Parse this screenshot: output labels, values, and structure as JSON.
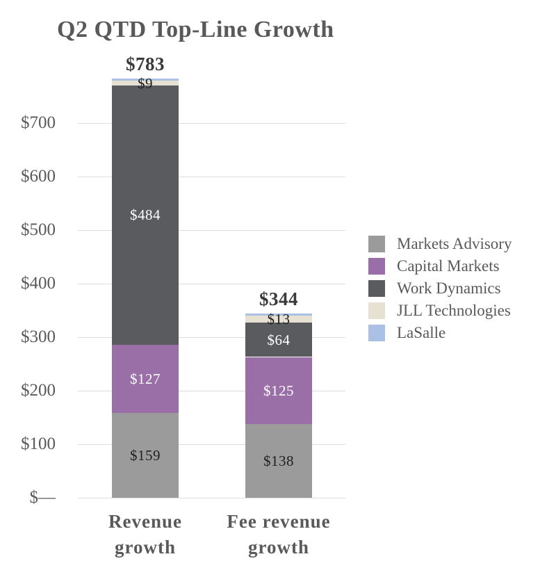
{
  "chart_data": {
    "type": "bar",
    "stacked": true,
    "title": "Q2 QTD Top-Line Growth",
    "categories": [
      "Revenue\ngrowth",
      "Fee revenue\ngrowth"
    ],
    "series": [
      {
        "name": "Markets Advisory",
        "color": "#9B9B9B",
        "values": [
          159,
          138
        ],
        "labels": [
          "$159",
          "$138"
        ],
        "label_style": "dark"
      },
      {
        "name": "Capital Markets",
        "color": "#9A6FA8",
        "values": [
          127,
          125
        ],
        "labels": [
          "$127",
          "$125"
        ],
        "label_style": "light"
      },
      {
        "name": "Work Dynamics",
        "color": "#595B5E",
        "values": [
          484,
          64
        ],
        "labels": [
          "$484",
          "$64"
        ],
        "label_style": "light"
      },
      {
        "name": "JLL Technologies",
        "color": "#E7E1D3",
        "values": [
          9,
          13
        ],
        "labels": [
          "$9",
          "$13"
        ],
        "label_style": "dark"
      },
      {
        "name": "LaSalle",
        "color": "#AAC1E4",
        "values": [
          4,
          4
        ],
        "labels": [
          null,
          null
        ],
        "label_style": "none"
      }
    ],
    "totals": [
      "$783",
      "$344"
    ],
    "y_axis": {
      "ticks": [
        {
          "value": 0,
          "label": "$—"
        },
        {
          "value": 100,
          "label": "$100"
        },
        {
          "value": 200,
          "label": "$200"
        },
        {
          "value": 300,
          "label": "$300"
        },
        {
          "value": 400,
          "label": "$400"
        },
        {
          "value": 500,
          "label": "$500"
        },
        {
          "value": 600,
          "label": "$600"
        },
        {
          "value": 700,
          "label": "$700"
        }
      ],
      "range": [
        0,
        783
      ]
    },
    "grid": true,
    "legend_position": "right"
  },
  "palette": {
    "title_color": "#595959",
    "axis_label_color": "#595959",
    "total_label_color": "#3A3A3A",
    "category_label_color": "#595959",
    "gridline_color": "#DCDCDC",
    "segment_label_dark": "#1F1F1F",
    "segment_label_light": "#FFFFFF",
    "background": "#FFFFFF"
  }
}
